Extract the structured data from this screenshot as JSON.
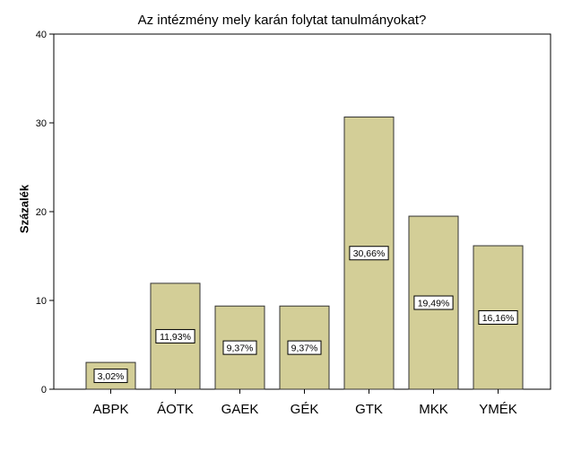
{
  "chart_data": {
    "type": "bar",
    "title": "Az intézmény mely karán folytat tanulmányokat?",
    "xlabel": "",
    "ylabel": "Százalék",
    "categories": [
      "ABPK",
      "ÁOTK",
      "GAEK",
      "GÉK",
      "GTK",
      "MKK",
      "YMÉK"
    ],
    "values": [
      3.02,
      11.93,
      9.37,
      9.37,
      30.66,
      19.49,
      16.16
    ],
    "data_labels": [
      "3,02%",
      "11,93%",
      "9,37%",
      "9,37%",
      "30,66%",
      "19,49%",
      "16,16%"
    ],
    "ylim": [
      0,
      40
    ],
    "yticks": [
      0,
      10,
      20,
      30,
      40
    ],
    "grid": false,
    "legend": "none",
    "colors": {
      "bar_fill": "#d3ce97",
      "bar_stroke": "#333333",
      "axis": "#000000"
    }
  }
}
